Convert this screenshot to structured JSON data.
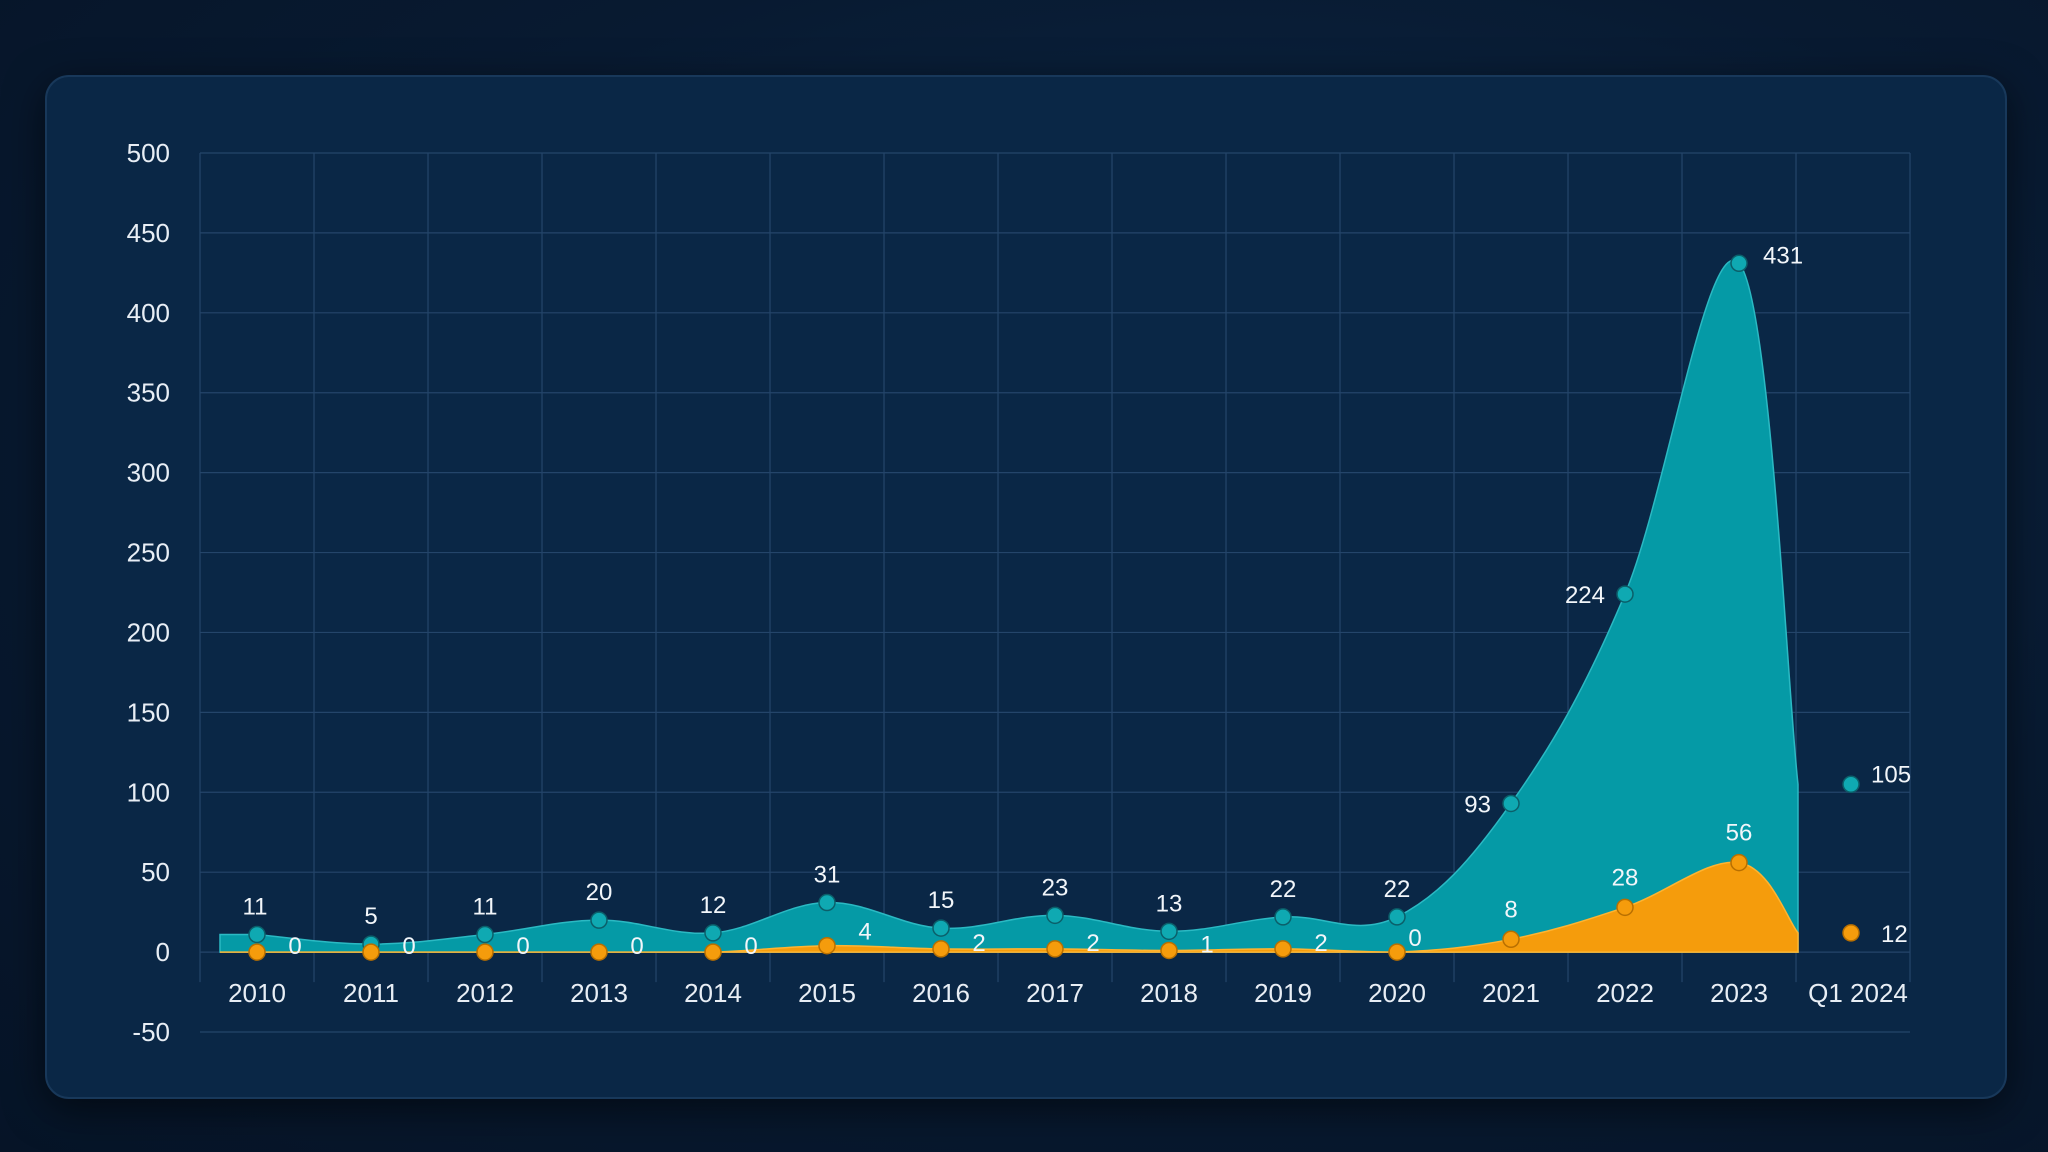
{
  "colors": {
    "series_a": "#059aa6",
    "series_a_point": "#0fa9b2",
    "series_b": "#f59c0c",
    "grid": "#24456a",
    "panel": "#0a2746"
  },
  "chart_data": {
    "type": "area",
    "categories": [
      "2010",
      "2011",
      "2012",
      "2013",
      "2014",
      "2015",
      "2016",
      "2017",
      "2018",
      "2019",
      "2020",
      "2021",
      "2022",
      "2023",
      "Q1 2024"
    ],
    "series": [
      {
        "color": "#059aa6",
        "values": [
          11,
          5,
          11,
          20,
          12,
          31,
          15,
          23,
          13,
          22,
          22,
          93,
          224,
          431,
          105
        ]
      },
      {
        "color": "#f59c0c",
        "values": [
          0,
          0,
          0,
          0,
          0,
          4,
          2,
          2,
          1,
          2,
          0,
          8,
          28,
          56,
          12
        ]
      }
    ],
    "ylim": [
      -50,
      500
    ],
    "yticks": [
      500,
      450,
      400,
      350,
      300,
      250,
      200,
      150,
      100,
      50,
      0,
      -50
    ],
    "grid": true,
    "legend": "none"
  }
}
